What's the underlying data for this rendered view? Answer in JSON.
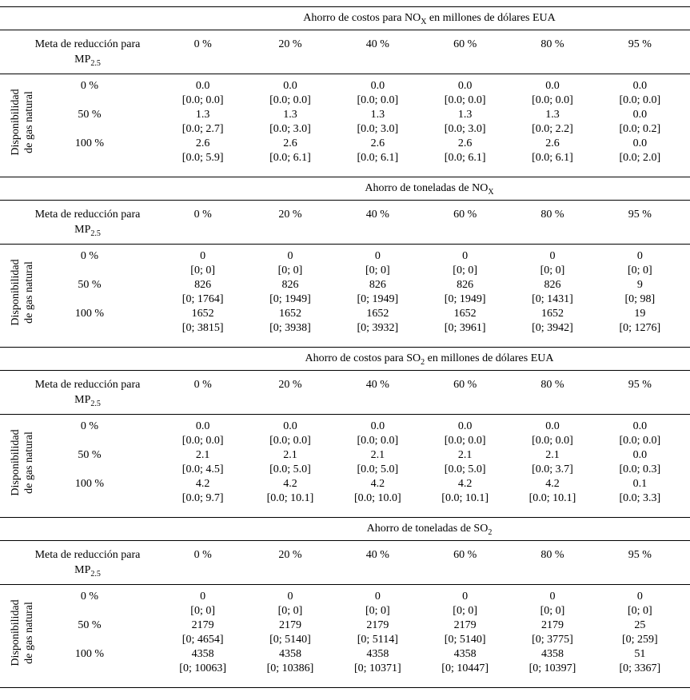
{
  "shared": {
    "col_group_line1": "Meta de reducción para",
    "col_group_line2_pre": "MP",
    "col_group_line2_sub": "2.5",
    "columns": [
      "0 %",
      "20 %",
      "40 %",
      "60 %",
      "80 %",
      "95 %"
    ],
    "row_group_line1": "Disponibilidad",
    "row_group_line2": "de gas natural",
    "text_color": "#000000",
    "background_color": "#ffffff"
  },
  "sections": [
    {
      "title_pre": "Ahorro de costos para NO",
      "title_sub": "X",
      "title_post": "  en millones de dólares EUA",
      "rows": [
        {
          "label": "0 %",
          "values": [
            "0.0",
            "0.0",
            "0.0",
            "0.0",
            "0.0",
            "0.0"
          ],
          "ranges": [
            "[0.0; 0.0]",
            "[0.0; 0.0]",
            "[0.0; 0.0]",
            "[0.0; 0.0]",
            "[0.0; 0.0]",
            "[0.0; 0.0]"
          ]
        },
        {
          "label": "50 %",
          "values": [
            "1.3",
            "1.3",
            "1.3",
            "1.3",
            "1.3",
            "0.0"
          ],
          "ranges": [
            "[0.0; 2.7]",
            "[0.0; 3.0]",
            "[0.0; 3.0]",
            "[0.0; 3.0]",
            "[0.0; 2.2]",
            "[0.0; 0.2]"
          ]
        },
        {
          "label": "100 %",
          "values": [
            "2.6",
            "2.6",
            "2.6",
            "2.6",
            "2.6",
            "0.0"
          ],
          "ranges": [
            "[0.0; 5.9]",
            "[0.0; 6.1]",
            "[0.0; 6.1]",
            "[0.0; 6.1]",
            "[0.0; 6.1]",
            "[0.0; 2.0]"
          ]
        }
      ]
    },
    {
      "title_pre": "Ahorro de toneladas de NO",
      "title_sub": "X",
      "title_post": "",
      "rows": [
        {
          "label": "0 %",
          "values": [
            "0",
            "0",
            "0",
            "0",
            "0",
            "0"
          ],
          "ranges": [
            "[0; 0]",
            "[0; 0]",
            "[0; 0]",
            "[0; 0]",
            "[0; 0]",
            "[0; 0]"
          ]
        },
        {
          "label": "50 %",
          "values": [
            "826",
            "826",
            "826",
            "826",
            "826",
            "9"
          ],
          "ranges": [
            "[0; 1764]",
            "[0; 1949]",
            "[0; 1949]",
            "[0; 1949]",
            "[0; 1431]",
            "[0; 98]"
          ]
        },
        {
          "label": "100 %",
          "values": [
            "1652",
            "1652",
            "1652",
            "1652",
            "1652",
            "19"
          ],
          "ranges": [
            "[0; 3815]",
            "[0; 3938]",
            "[0; 3932]",
            "[0; 3961]",
            "[0; 3942]",
            "[0; 1276]"
          ]
        }
      ]
    },
    {
      "title_pre": "Ahorro de costos para SO",
      "title_sub": "2",
      "title_post": "  en millones de dólares EUA",
      "rows": [
        {
          "label": "0 %",
          "values": [
            "0.0",
            "0.0",
            "0.0",
            "0.0",
            "0.0",
            "0.0"
          ],
          "ranges": [
            "[0.0; 0.0]",
            "[0.0; 0.0]",
            "[0.0; 0.0]",
            "[0.0; 0.0]",
            "[0.0; 0.0]",
            "[0.0; 0.0]"
          ]
        },
        {
          "label": "50 %",
          "values": [
            "2.1",
            "2.1",
            "2.1",
            "2.1",
            "2.1",
            "0.0"
          ],
          "ranges": [
            "[0.0; 4.5]",
            "[0.0; 5.0]",
            "[0.0; 5.0]",
            "[0.0; 5.0]",
            "[0.0; 3.7]",
            "[0.0; 0.3]"
          ]
        },
        {
          "label": "100 %",
          "values": [
            "4.2",
            "4.2",
            "4.2",
            "4.2",
            "4.2",
            "0.1"
          ],
          "ranges": [
            "[0.0; 9.7]",
            "[0.0; 10.1]",
            "[0.0; 10.0]",
            "[0.0; 10.1]",
            "[0.0; 10.1]",
            "[0.0; 3.3]"
          ]
        }
      ]
    },
    {
      "title_pre": "Ahorro de toneladas de SO",
      "title_sub": "2",
      "title_post": "",
      "rows": [
        {
          "label": "0 %",
          "values": [
            "0",
            "0",
            "0",
            "0",
            "0",
            "0"
          ],
          "ranges": [
            "[0; 0]",
            "[0; 0]",
            "[0; 0]",
            "[0; 0]",
            "[0; 0]",
            "[0; 0]"
          ]
        },
        {
          "label": "50 %",
          "values": [
            "2179",
            "2179",
            "2179",
            "2179",
            "2179",
            "25"
          ],
          "ranges": [
            "[0; 4654]",
            "[0; 5140]",
            "[0; 5114]",
            "[0; 5140]",
            "[0; 3775]",
            "[0; 259]"
          ]
        },
        {
          "label": "100 %",
          "values": [
            "4358",
            "4358",
            "4358",
            "4358",
            "4358",
            "51"
          ],
          "ranges": [
            "[0; 10063]",
            "[0; 10386]",
            "[0; 10371]",
            "[0; 10447]",
            "[0; 10397]",
            "[0; 3367]"
          ]
        }
      ]
    }
  ]
}
